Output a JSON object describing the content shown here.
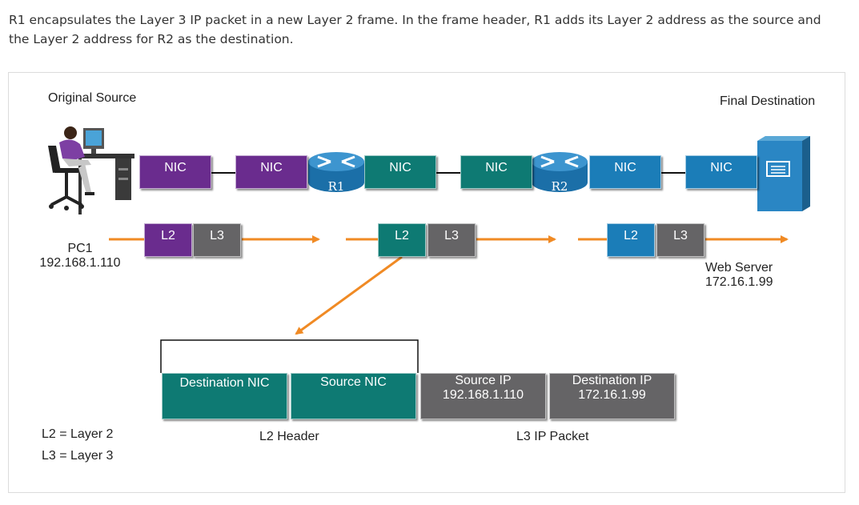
{
  "caption": "R1 encapsulates the Layer 3 IP packet in a new Layer 2 frame. In the frame header, R1 adds its Layer 2 address as the source and the Layer 2 address for R2 as the destination.",
  "labels": {
    "original_source": "Original Source",
    "final_destination": "Final Destination",
    "pc_name": "PC1",
    "pc_ip": "192.168.1.110",
    "server_name": "Web Server",
    "server_ip": "172.16.1.99",
    "l2_header": "L2 Header",
    "l3_packet": "L3 IP Packet",
    "legend_l2": "L2 = Layer 2",
    "legend_l3": "L3 = Layer 3"
  },
  "routers": [
    "R1",
    "R2"
  ],
  "nics": [
    "NIC",
    "NIC",
    "NIC",
    "NIC",
    "NIC",
    "NIC"
  ],
  "chips": [
    "L2",
    "L3",
    "L2",
    "L3",
    "L2",
    "L3"
  ],
  "fields": {
    "dest_nic": "Destination NIC",
    "src_nic": "Source NIC",
    "src_ip_label": "Source IP",
    "src_ip_value": "192.168.1.110",
    "dst_ip_label": "Destination IP",
    "dst_ip_value": "172.16.1.99"
  },
  "colors": {
    "purple": "#6a2c8e",
    "teal": "#0e7a73",
    "blue": "#1b7db8",
    "gray": "#656466",
    "orange": "#f08a24"
  }
}
